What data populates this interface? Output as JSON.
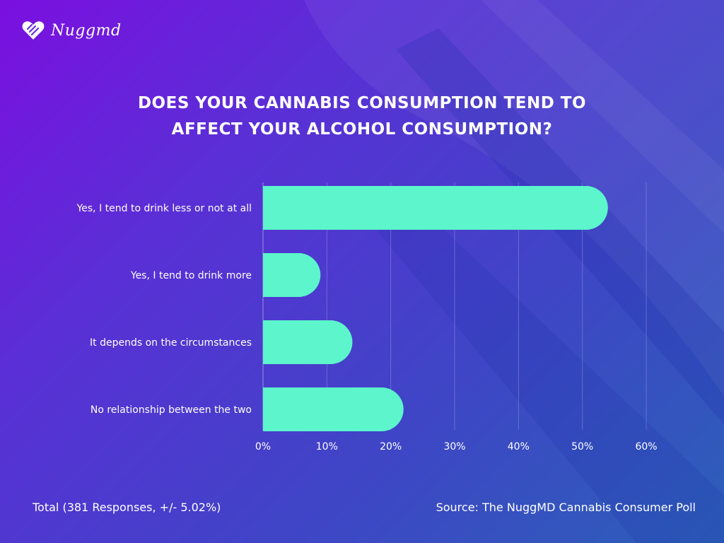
{
  "brand": {
    "logo_text": "Nuggmd",
    "logo_icon": "heart-logo-icon"
  },
  "title_line1": "DOES YOUR CANNABIS CONSUMPTION TEND TO",
  "title_line2": "AFFECT YOUR ALCOHOL CONSUMPTION?",
  "footer": {
    "total": "Total (381 Responses, +/- 5.02%)",
    "source": "Source: The NuggMD Cannabis Consumer Poll"
  },
  "colors": {
    "bar": "#5cf5cc",
    "grid": "#8d8de0",
    "background_start": "#7b0fe0",
    "background_end": "#2c5fb8",
    "text": "#ffffff"
  },
  "chart_data": {
    "type": "bar",
    "orientation": "horizontal",
    "title": "DOES YOUR CANNABIS CONSUMPTION TEND TO AFFECT YOUR ALCOHOL CONSUMPTION?",
    "categories": [
      "Yes, I tend to drink less or not at all",
      "Yes, I tend to drink more",
      "It depends on the circumstances",
      "No relationship between the two"
    ],
    "values": [
      54,
      9,
      14,
      22
    ],
    "unit": "%",
    "xlim": [
      0,
      60
    ],
    "ticks": [
      0,
      10,
      20,
      30,
      40,
      50,
      60
    ],
    "tick_labels": [
      "0%",
      "10%",
      "20%",
      "30%",
      "40%",
      "50%",
      "60%"
    ],
    "grid": true,
    "legend": "none"
  }
}
